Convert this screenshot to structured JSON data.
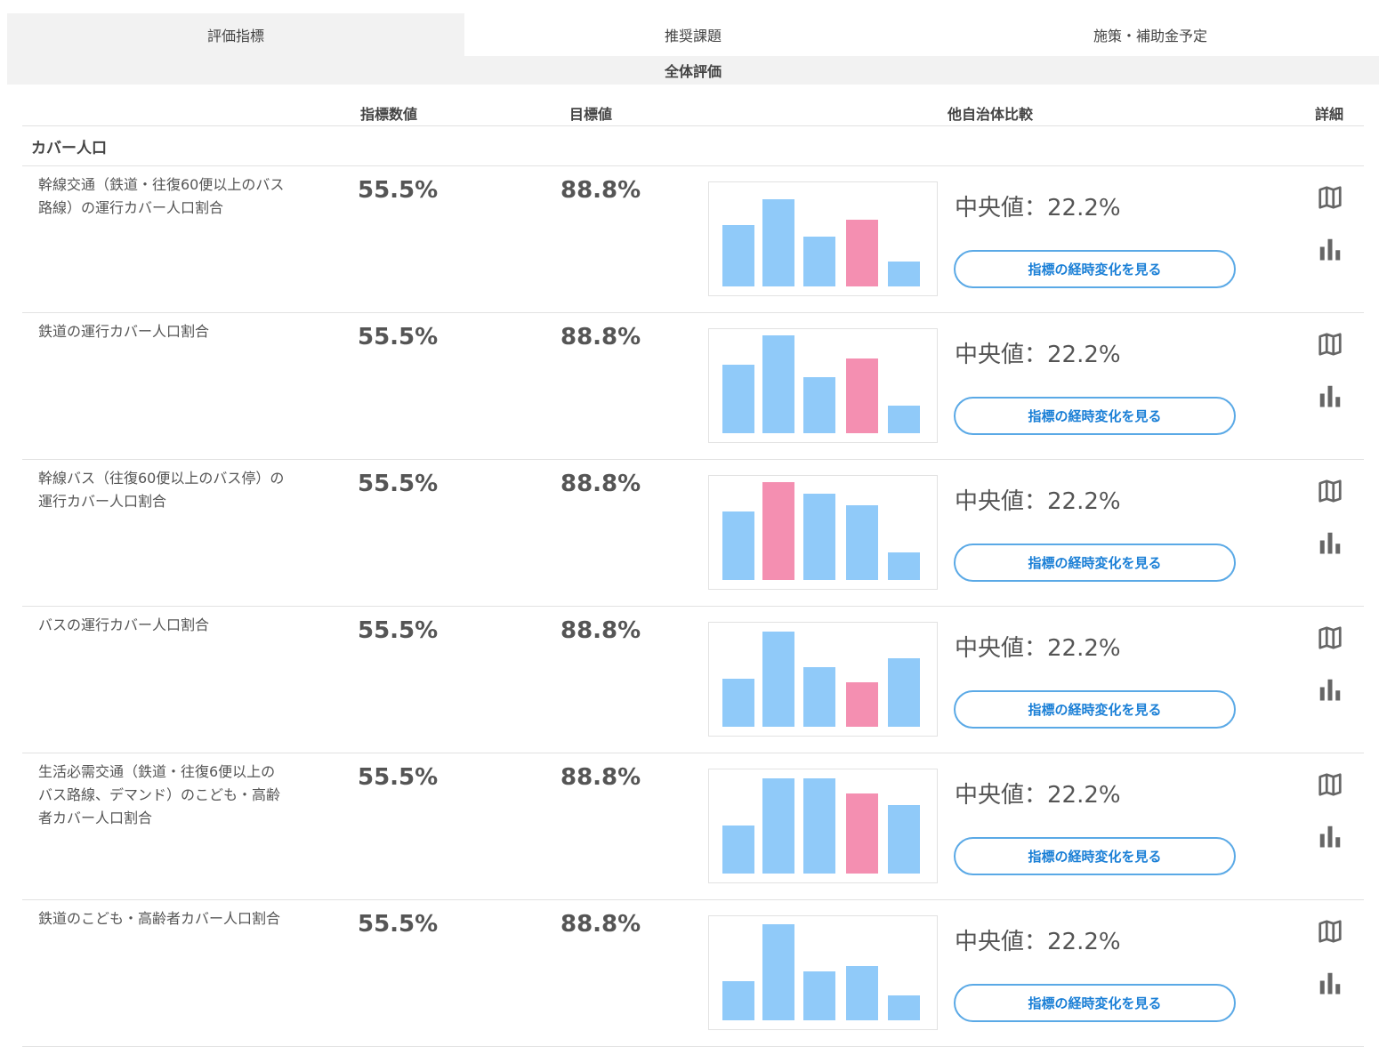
{
  "tabs": [
    {
      "label": "評価指標",
      "active": true
    },
    {
      "label": "推奨課題",
      "active": false
    },
    {
      "label": "施策・補助金予定",
      "active": false
    }
  ],
  "subheader": "全体評価",
  "columns": {
    "value": "指標数値",
    "target": "目標値",
    "compare": "他自治体比較",
    "detail": "詳細"
  },
  "category": "カバー人口",
  "colors": {
    "bar": "#90caf9",
    "highlight": "#f48fb1",
    "button": "#1a7fd6"
  },
  "rows": [
    {
      "label": "幹線交通（鉄道・往復60便以上のバス路線）の運行カバー人口割合",
      "value": "55.5%",
      "target": "88.8%",
      "median": "中央値：22.2%",
      "button": "指標の経時変化を見る",
      "bars": [
        63,
        89,
        51,
        68,
        25
      ],
      "highlight": 3
    },
    {
      "label": "鉄道の運行カバー人口割合",
      "value": "55.5%",
      "target": "88.8%",
      "median": "中央値：22.2%",
      "button": "指標の経時変化を見る",
      "bars": [
        70,
        100,
        57,
        76,
        28
      ],
      "highlight": 3
    },
    {
      "label": "幹線バス（往復60便以上のバス停）の運行カバー人口割合",
      "value": "55.5%",
      "target": "88.8%",
      "median": "中央値：22.2%",
      "button": "指標の経時変化を見る",
      "bars": [
        70,
        100,
        88,
        76,
        28
      ],
      "highlight": 1
    },
    {
      "label": "バスの運行カバー人口割合",
      "value": "55.5%",
      "target": "88.8%",
      "median": "中央値：22.2%",
      "button": "指標の経時変化を見る",
      "bars": [
        49,
        97,
        61,
        45,
        70
      ],
      "highlight": 3
    },
    {
      "label": "生活必需交通（鉄道・往復6便以上のバス路線、デマンド）のこども・高齢者カバー人口割合",
      "value": "55.5%",
      "target": "88.8%",
      "median": "中央値：22.2%",
      "button": "指標の経時変化を見る",
      "bars": [
        49,
        97,
        97,
        82,
        70
      ],
      "highlight": 3
    },
    {
      "label": "鉄道のこども・高齢者カバー人口割合",
      "value": "55.5%",
      "target": "88.8%",
      "median": "中央値：22.2%",
      "button": "指標の経時変化を見る",
      "bars": [
        40,
        98,
        50,
        55,
        25
      ],
      "highlight": -1
    }
  ]
}
